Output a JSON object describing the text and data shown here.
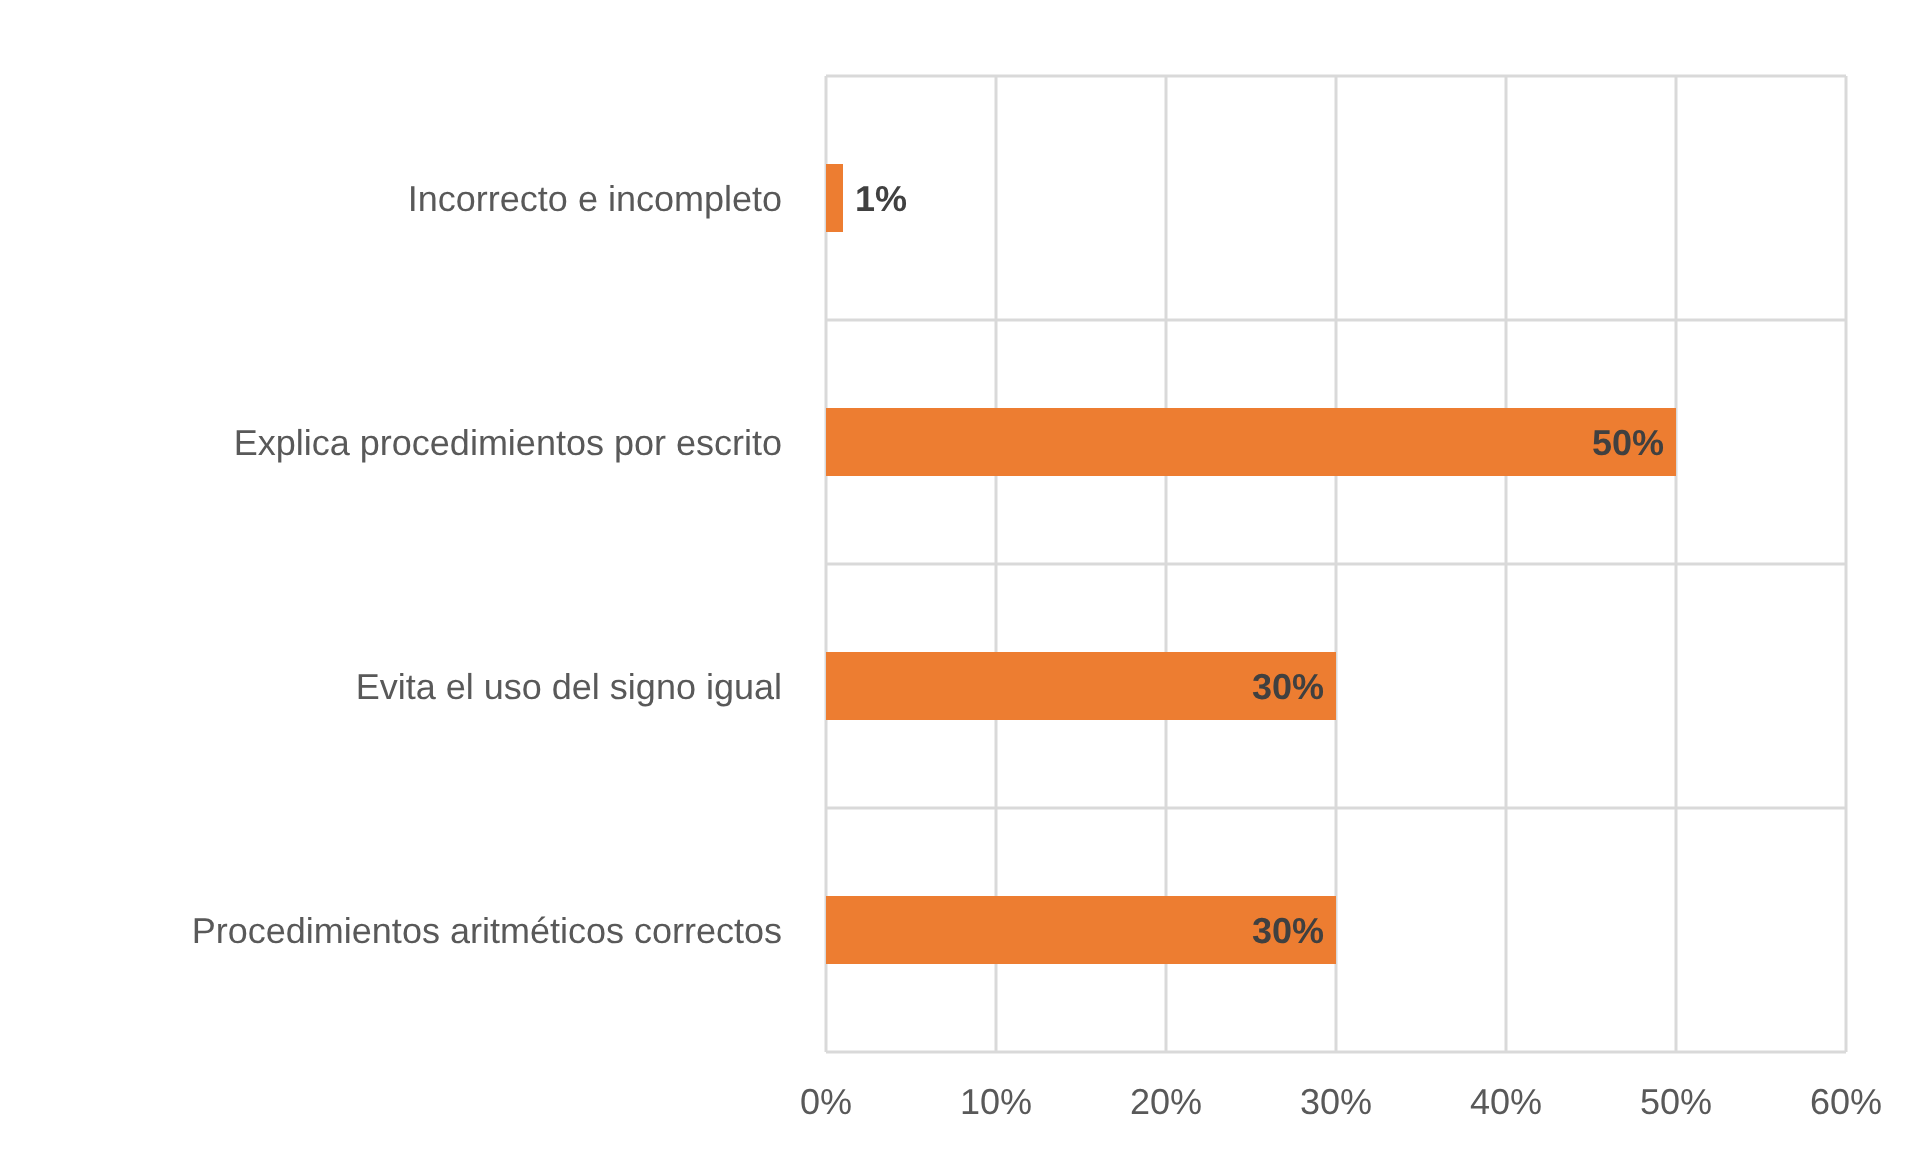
{
  "chart_data": {
    "type": "bar",
    "orientation": "horizontal",
    "categories": [
      "Incorrecto e incompleto",
      "Explica procedimientos por escrito",
      "Evita el uso del signo igual",
      "Procedimientos aritméticos correctos"
    ],
    "values": [
      1,
      50,
      30,
      30
    ],
    "color": "#ed7d31",
    "value_labels": [
      "1%",
      "50%",
      "30%",
      "30%"
    ],
    "xlim": [
      0,
      60
    ],
    "xticks": [
      {
        "value": 0,
        "label": "0%"
      },
      {
        "value": 10,
        "label": "10%"
      },
      {
        "value": 20,
        "label": "20%"
      },
      {
        "value": 30,
        "label": "30%"
      },
      {
        "value": 40,
        "label": "40%"
      },
      {
        "value": 50,
        "label": "50%"
      },
      {
        "value": 60,
        "label": "60%"
      }
    ],
    "grid": true
  }
}
